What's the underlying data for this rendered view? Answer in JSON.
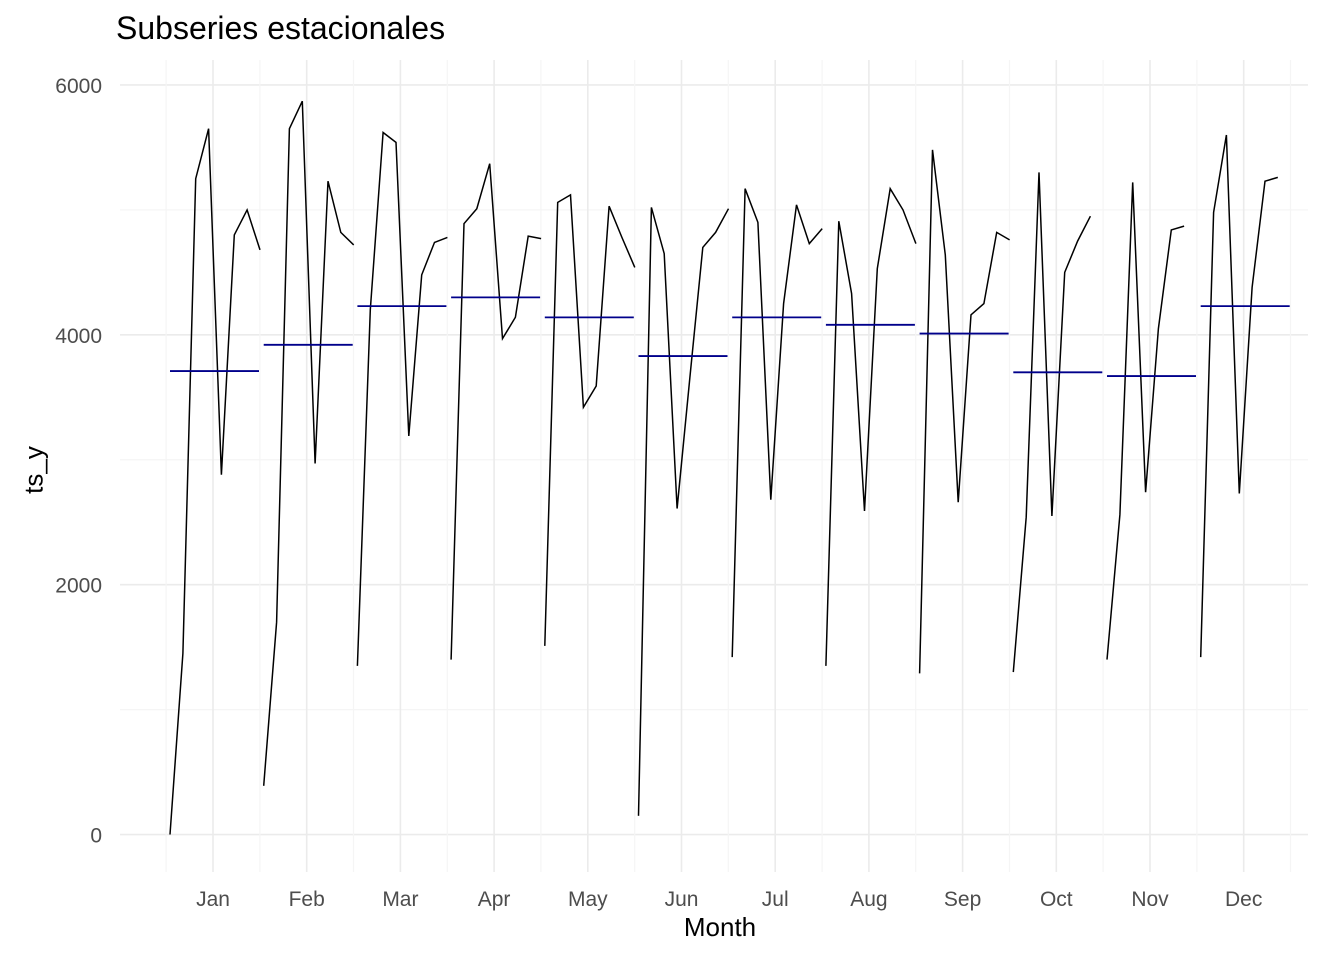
{
  "chart_data": {
    "type": "line",
    "title": "Subseries estacionales",
    "xlabel": "Month",
    "ylabel": "ts_y",
    "ylim": [
      -300,
      6200
    ],
    "yticks": [
      0,
      2000,
      4000,
      6000
    ],
    "grid": true,
    "months": [
      "Jan",
      "Feb",
      "Mar",
      "Apr",
      "May",
      "Jun",
      "Jul",
      "Aug",
      "Sep",
      "Oct",
      "Nov",
      "Dec"
    ],
    "series": [
      {
        "month": "Jan",
        "mean": 3710,
        "values": [
          0,
          1450,
          5250,
          5650,
          2880,
          4800,
          5000,
          4680
        ]
      },
      {
        "month": "Feb",
        "mean": 3920,
        "values": [
          390,
          1700,
          5650,
          5870,
          2970,
          5230,
          4820,
          4720
        ]
      },
      {
        "month": "Mar",
        "mean": 4230,
        "values": [
          1350,
          4200,
          5620,
          5540,
          3190,
          4480,
          4740,
          4780
        ]
      },
      {
        "month": "Apr",
        "mean": 4300,
        "values": [
          1400,
          4890,
          5010,
          5370,
          3970,
          4140,
          4790,
          4770
        ]
      },
      {
        "month": "May",
        "mean": 4140,
        "values": [
          1510,
          5060,
          5120,
          3420,
          3590,
          5030,
          4780,
          4540
        ]
      },
      {
        "month": "Jun",
        "mean": 3830,
        "values": [
          150,
          5020,
          4650,
          2610,
          3660,
          4700,
          4820,
          5010
        ]
      },
      {
        "month": "Jul",
        "mean": 4140,
        "values": [
          1420,
          5170,
          4900,
          2680,
          4250,
          5040,
          4730,
          4850
        ]
      },
      {
        "month": "Aug",
        "mean": 4080,
        "values": [
          1350,
          4910,
          4330,
          2590,
          4530,
          5170,
          5000,
          4730
        ]
      },
      {
        "month": "Sep",
        "mean": 4010,
        "values": [
          1290,
          5480,
          4640,
          2660,
          4160,
          4250,
          4820,
          4760
        ]
      },
      {
        "month": "Oct",
        "mean": 3700,
        "values": [
          1300,
          2540,
          5300,
          2550,
          4500,
          4750,
          4950
        ]
      },
      {
        "month": "Nov",
        "mean": 3670,
        "values": [
          1400,
          2560,
          5220,
          2740,
          4050,
          4840,
          4870
        ]
      },
      {
        "month": "Dec",
        "mean": 4230,
        "values": [
          1420,
          4980,
          5600,
          2730,
          4380,
          5230,
          5260
        ]
      }
    ]
  },
  "colors": {
    "series_line": "#000000",
    "mean_line": "#00008b",
    "grid_major": "#ebebeb",
    "grid_minor": "#f5f5f5",
    "tick_text": "#4d4d4d"
  }
}
